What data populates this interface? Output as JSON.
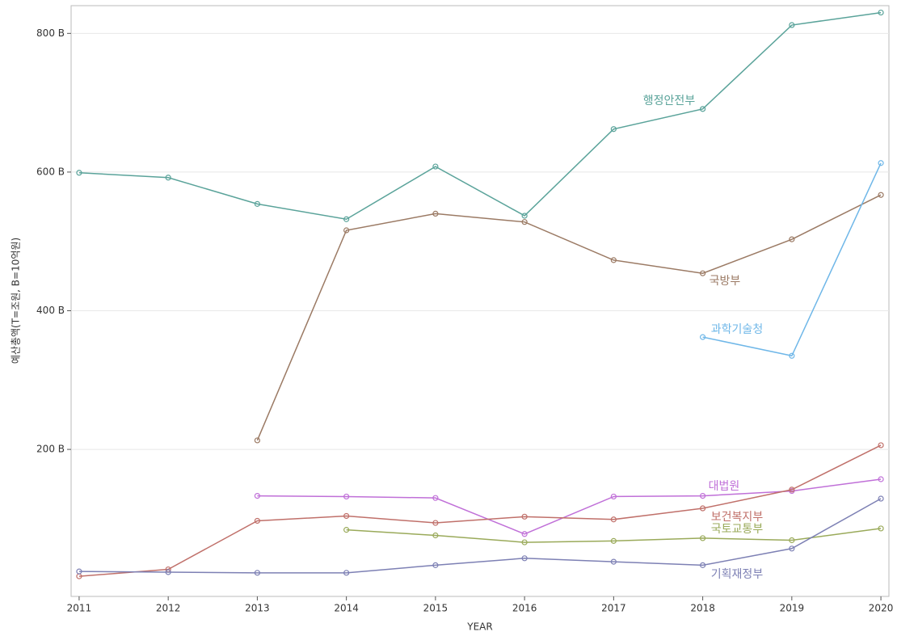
{
  "chart_data": {
    "type": "line",
    "x": [
      2011,
      2012,
      2013,
      2014,
      2015,
      2016,
      2017,
      2018,
      2019,
      2020
    ],
    "xlabel": "YEAR",
    "ylabel": "예산총액(T=조원, B=10억원)",
    "xlim": [
      2010.91,
      2020.09
    ],
    "xticks": [
      2011,
      2012,
      2013,
      2014,
      2015,
      2016,
      2017,
      2018,
      2019,
      2020
    ],
    "ylim": [
      -12,
      840
    ],
    "yticks": [
      {
        "value": 200,
        "label": "200 B"
      },
      {
        "value": 400,
        "label": "400 B"
      },
      {
        "value": 600,
        "label": "600 B"
      },
      {
        "value": 800,
        "label": "800 B"
      }
    ],
    "grid": true,
    "series": [
      {
        "name": "행정안전부",
        "color": "#5aa39a",
        "values": [
          599,
          592,
          554,
          532,
          608,
          537,
          662,
          691,
          812,
          830
        ]
      },
      {
        "name": "국방부",
        "color": "#9b7a64",
        "values": [
          null,
          null,
          213,
          516,
          540,
          528,
          473,
          454,
          503,
          567
        ]
      },
      {
        "name": "과학기술청",
        "color": "#6fb7e8",
        "values": [
          null,
          null,
          null,
          null,
          null,
          null,
          null,
          362,
          335,
          613
        ]
      },
      {
        "name": "대법원",
        "color": "#c070d8",
        "values": [
          null,
          null,
          133,
          132,
          130,
          78,
          132,
          133,
          140,
          157
        ]
      },
      {
        "name": "보건복지부",
        "color": "#c0706a",
        "values": [
          17,
          27,
          97,
          104,
          94,
          103,
          99,
          115,
          142,
          206
        ]
      },
      {
        "name": "국토교통부",
        "color": "#9aaa5a",
        "values": [
          null,
          null,
          null,
          84,
          76,
          66,
          68,
          72,
          69,
          86
        ]
      },
      {
        "name": "기획재정부",
        "color": "#7d80b4",
        "values": [
          24,
          23,
          22,
          22,
          33,
          43,
          38,
          33,
          57,
          129
        ]
      }
    ]
  }
}
